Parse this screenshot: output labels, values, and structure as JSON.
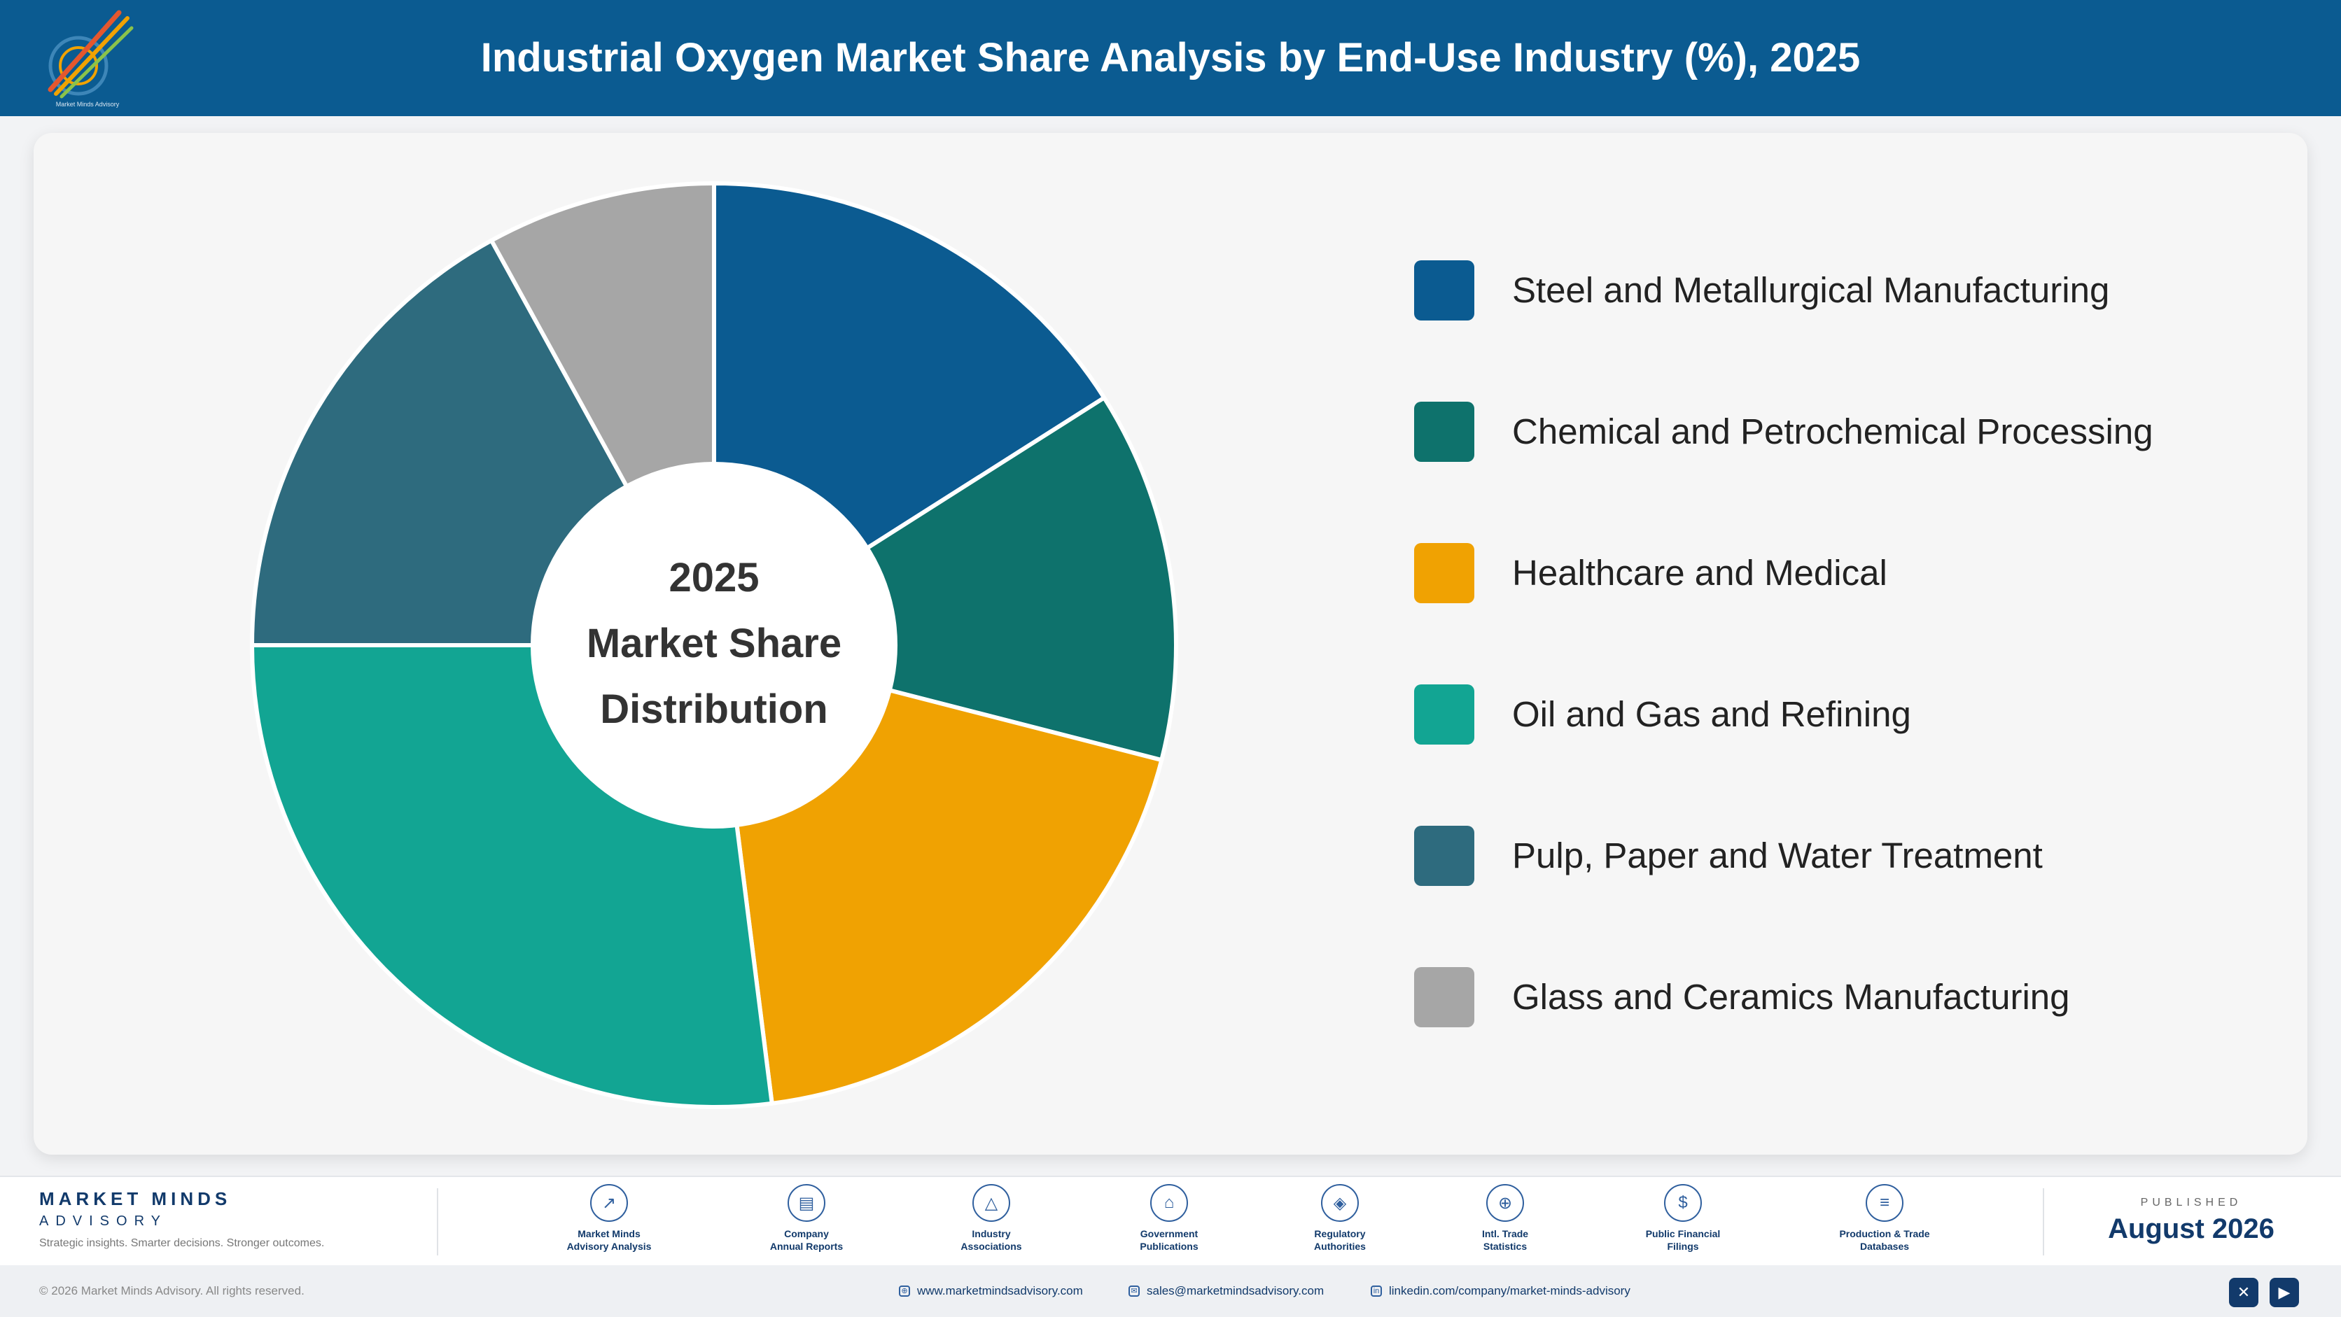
{
  "header": {
    "title": "Industrial Oxygen Market Share Analysis by End-Use Industry (%), 2025",
    "logo_icon": "market-minds-logo"
  },
  "chart_data": {
    "type": "pie",
    "donut": true,
    "center_label": [
      "2025",
      "Market Share",
      "Distribution"
    ],
    "legend_position": "right",
    "categories": [
      "Steel and Metallurgical Manufacturing",
      "Chemical and Petrochemical Processing",
      "Healthcare and Medical",
      "Oil and Gas and Refining",
      "Pulp, Paper and Water Treatment",
      "Glass and Ceramics Manufacturing"
    ],
    "values": [
      16,
      13,
      19,
      27,
      17,
      8
    ],
    "unit": "%",
    "colors": [
      "#0b5b91",
      "#0e726c",
      "#f0a202",
      "#12a593",
      "#2e6b7e",
      "#a6a6a6"
    ]
  },
  "footer": {
    "brand_name": "MARKET MINDS",
    "brand_sub": "ADVISORY",
    "brand_tagline": "Strategic insights. Smarter decisions. Stronger outcomes.",
    "sources": [
      {
        "line1": "Market Minds",
        "line2": "Advisory Analysis",
        "icon": "trend-chart-icon"
      },
      {
        "line1": "Company",
        "line2": "Annual Reports",
        "icon": "document-icon"
      },
      {
        "line1": "Industry",
        "line2": "Associations",
        "icon": "network-icon"
      },
      {
        "line1": "Government",
        "line2": "Publications",
        "icon": "government-building-icon"
      },
      {
        "line1": "Regulatory",
        "line2": "Authorities",
        "icon": "shield-icon"
      },
      {
        "line1": "Intl. Trade",
        "line2": "Statistics",
        "icon": "globe-icon"
      },
      {
        "line1": "Public Financial",
        "line2": "Filings",
        "icon": "dollar-coin-icon"
      },
      {
        "line1": "Production & Trade",
        "line2": "Databases",
        "icon": "database-icon"
      }
    ],
    "published_label": "PUBLISHED",
    "published_date": "August 2026"
  },
  "bottom_bar": {
    "copyright": "© 2026 Market Minds Advisory. All rights reserved.",
    "website": "www.marketmindsadvisory.com",
    "email": "sales@marketmindsadvisory.com",
    "linkedin": "linkedin.com/company/market-minds-advisory"
  }
}
